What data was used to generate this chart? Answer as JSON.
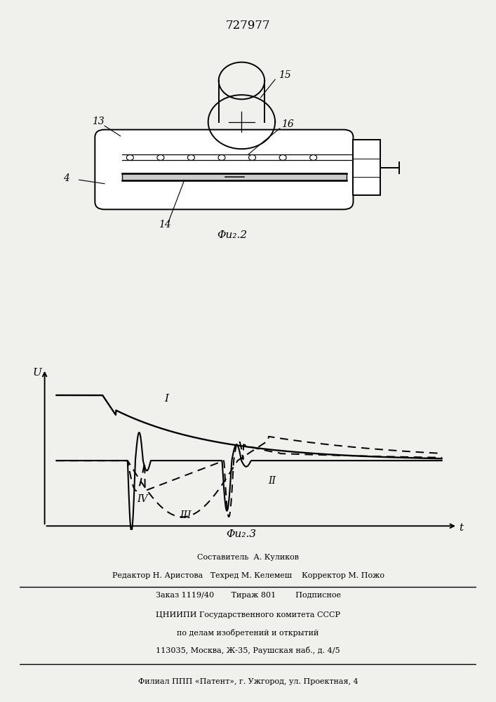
{
  "title": "727977",
  "title_fontsize": 12,
  "bg_color": "#f0f0ec",
  "fig2_label": "Φu₂.2",
  "fig3_label": "Φu₂.3",
  "label_13": "13",
  "label_14": "14",
  "label_15": "15",
  "label_16": "16",
  "label_4": "4",
  "axis_v": "U",
  "axis_t": "t",
  "curve_I_label": "I",
  "curve_II_label": "II",
  "curve_III_label": "III",
  "curve_IV_label": "IV",
  "footer_line1": "Составитель  А. Куликов",
  "footer_line2": "Редактор Н. Аристова   Техред М. Келемеш    Корректор М. Пожо",
  "footer_line3": "Заказ 1119/40       Тираж 801        Подписное",
  "footer_line4": "ЦНИИПИ Государственного комитета СССР",
  "footer_line5": "по делам изобретений и открытий",
  "footer_line6": "113035, Москва, Ж-35, Раушская наб., д. 4/5",
  "footer_line7": "Филиал ППП «Патент», г. Ужгород, ул. Проектная, 4"
}
